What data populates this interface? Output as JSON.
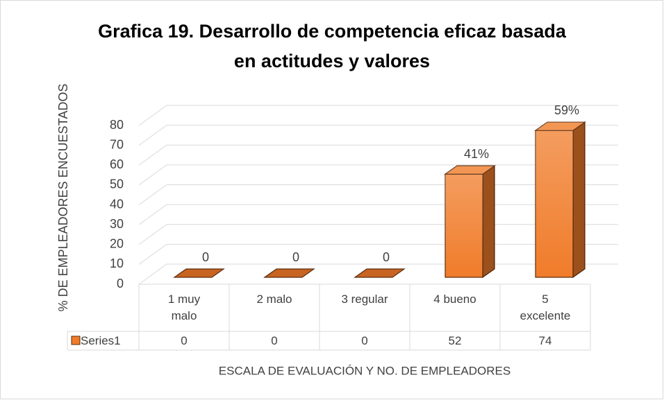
{
  "chart_data": {
    "type": "bar3d",
    "title": "Grafica 19. Desarrollo de competencia eficaz basada en actitudes y valores",
    "y_axis_label": "% DE EMPLEADORES ENCUESTADOS",
    "x_axis_label": "ESCALA DE EVALUACIÓN Y NO. DE EMPLEADORES",
    "categories": [
      "1 muy malo",
      "2 malo",
      "3 regular",
      "4 bueno",
      "5 excelente"
    ],
    "series": [
      {
        "name": "Series1",
        "color": "#f07c2a",
        "values": [
          0,
          0,
          0,
          52,
          74
        ]
      }
    ],
    "data_labels": [
      "0",
      "0",
      "0",
      "41%",
      "59%"
    ],
    "ylim": [
      0,
      90
    ],
    "yticks": [
      0,
      10,
      20,
      30,
      40,
      50,
      60,
      70,
      80
    ],
    "grid": true,
    "data_table": true
  }
}
